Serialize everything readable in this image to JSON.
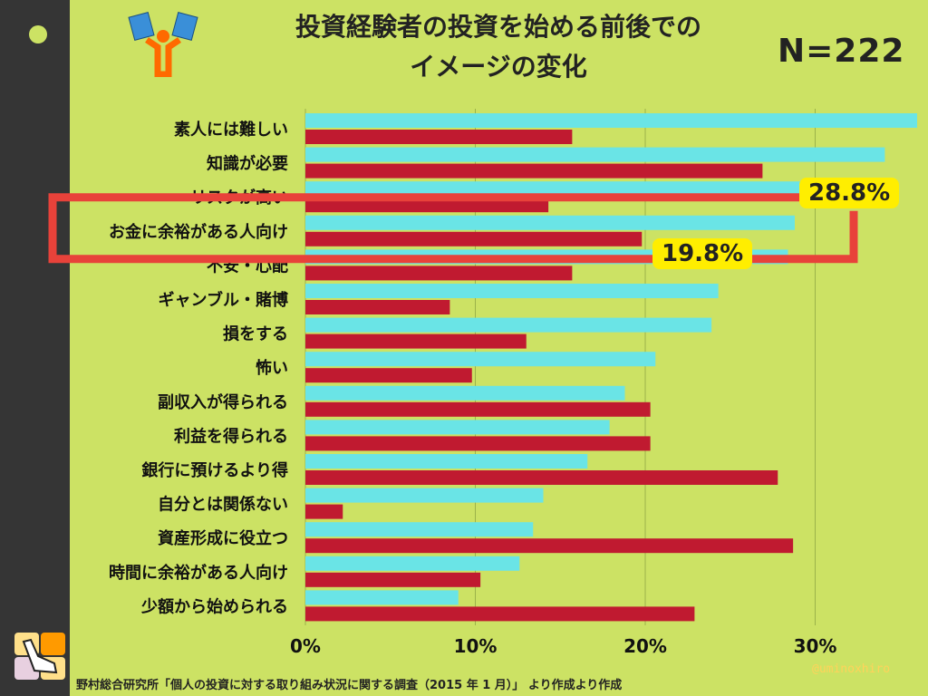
{
  "title_line1": "投資経験者の投資を始める前後での",
  "title_line2": "イメージの変化",
  "sample_size": "N=222",
  "source": "野村総合研究所「個人の投資に対する取り組み状況に関する調査（2015 年 1 月）」 より作成より作成",
  "credit": "@uminoxhiro",
  "callouts": [
    "28.8%",
    "19.8%"
  ],
  "colors": {
    "before": "#6ae4e6",
    "after": "#c01a30",
    "highlight": "#e8423a",
    "callout": "#ffee00",
    "background": "#cce264"
  },
  "chart_data": {
    "type": "bar",
    "orientation": "horizontal",
    "categories": [
      "素人には難しい",
      "知識が必要",
      "リスクが高い",
      "お金に余裕がある人向け",
      "不安・心配",
      "ギャンブル・賭博",
      "損をする",
      "怖い",
      "副収入が得られる",
      "利益を得られる",
      "銀行に預けるより得",
      "自分とは関係ない",
      "資産形成に役立つ",
      "時間に余裕がある人向け",
      "少額から始められる"
    ],
    "series": [
      {
        "color": "#6ae4e6",
        "values": [
          36.0,
          34.1,
          29.5,
          28.8,
          28.4,
          24.3,
          23.9,
          20.6,
          18.8,
          17.9,
          16.6,
          14.0,
          13.4,
          12.6,
          9.0
        ]
      },
      {
        "color": "#c01a30",
        "values": [
          15.7,
          26.9,
          14.3,
          19.8,
          15.7,
          8.5,
          13.0,
          9.8,
          20.3,
          20.3,
          27.8,
          2.2,
          28.7,
          10.3,
          22.9
        ]
      }
    ],
    "xticks": [
      "0%",
      "10%",
      "20%",
      "30%"
    ],
    "xlim": [
      0,
      36
    ],
    "grid": true,
    "highlighted_category": "お金に余裕がある人向け"
  }
}
